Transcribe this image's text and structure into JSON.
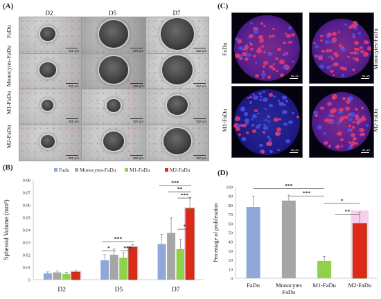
{
  "panels": {
    "a": {
      "label": "(A)",
      "columns": [
        "D2",
        "D5",
        "D7"
      ],
      "rows": [
        {
          "label": "FaDu",
          "scales": [
            "250 μm",
            "250 μm",
            "250 μm"
          ]
        },
        {
          "label": "Monocytes-FaDu",
          "scales": [
            "250 μm",
            "250 μm",
            "250 μm"
          ]
        },
        {
          "label": "M1-FaDu",
          "scales": [
            "250 μm",
            "250 μm",
            "250 μm"
          ]
        },
        {
          "label": "M2-FaDu",
          "scales": [
            "250 μm",
            "250 μm",
            "250 μm"
          ]
        }
      ]
    },
    "c": {
      "label": "(C)",
      "tiles": [
        {
          "label": "FaDu",
          "scale": "50 μm"
        },
        {
          "label": "Monocytes-FaDu",
          "scale": "50 μm"
        },
        {
          "label": "M1-FaDu",
          "scale": "50 μm"
        },
        {
          "label": "M2-FaDu",
          "scale": "50 μm"
        }
      ]
    },
    "b": {
      "label": "(B)"
    },
    "d": {
      "label": "(D)"
    }
  },
  "chart_data": [
    {
      "type": "bar",
      "panel": "B",
      "ylabel": "Spheroid Volume (mm³)",
      "xlabel": "",
      "categories": [
        "D2",
        "D5",
        "D7"
      ],
      "ylim": [
        0,
        0.08
      ],
      "yticks": [
        "0",
        "0.01",
        "0.02",
        "0.03",
        "0.04",
        "0.05",
        "0.06",
        "0.07",
        "0.08"
      ],
      "legend_position": "top",
      "series": [
        {
          "name": "Fadu",
          "color": "#8fa8d8",
          "values": [
            0.005,
            0.0155,
            0.0285
          ],
          "errors": [
            0.0012,
            0.0045,
            0.008
          ]
        },
        {
          "name": "Monocytes-FaDu",
          "color": "#a6a6a6",
          "values": [
            0.0058,
            0.02,
            0.0375
          ],
          "errors": [
            0.0012,
            0.0045,
            0.012
          ]
        },
        {
          "name": "M1-FaDu",
          "color": "#8fd24a",
          "values": [
            0.0046,
            0.0175,
            0.0245
          ],
          "errors": [
            0.0012,
            0.004,
            0.008
          ]
        },
        {
          "name": "M2-FaDu",
          "color": "#dd2a18",
          "values": [
            0.006,
            0.026,
            0.057
          ],
          "errors": [
            0.0012,
            0.002,
            0.009
          ]
        }
      ],
      "significance": [
        {
          "group": 1,
          "from": 0,
          "to": 1,
          "level": 0.023,
          "label": "*"
        },
        {
          "group": 1,
          "from": 2,
          "to": 3,
          "level": 0.023,
          "label": "***"
        },
        {
          "group": 1,
          "from": 0,
          "to": 3,
          "level": 0.0305,
          "label": "***"
        },
        {
          "group": 2,
          "from": 2,
          "to": 3,
          "level": 0.0405,
          "label": "*"
        },
        {
          "group": 2,
          "from": 2,
          "to": 3,
          "level": 0.0655,
          "label": "***"
        },
        {
          "group": 2,
          "from": 1,
          "to": 3,
          "level": 0.0705,
          "label": "**"
        },
        {
          "group": 2,
          "from": 0,
          "to": 3,
          "level": 0.0755,
          "label": "***"
        }
      ]
    },
    {
      "type": "bar",
      "panel": "D",
      "ylabel": "Percentage of proliferation",
      "xlabel": "",
      "categories": [
        "FaDu",
        "Monocytes FaDu",
        "M1-FaDu",
        "M2-FaDu"
      ],
      "colors": [
        "#8fa8d8",
        "#a6a6a6",
        "#8fd24a",
        "#dd2a18"
      ],
      "values": [
        78,
        85,
        19,
        60
      ],
      "errors": [
        12,
        6,
        5,
        12
      ],
      "ylim": [
        0,
        100
      ],
      "yticks": [
        "0",
        "10",
        "20",
        "30",
        "40",
        "50",
        "60",
        "70",
        "80",
        "90",
        "100"
      ],
      "significance": [
        {
          "from": 0,
          "to": 2,
          "level": 98,
          "label": "***"
        },
        {
          "from": 1,
          "to": 2,
          "level": 90,
          "label": "***"
        },
        {
          "from": 2,
          "to": 3,
          "level": 82,
          "label": "*"
        },
        {
          "from": 3,
          "to": 3,
          "level": 70,
          "label": "**",
          "from_x": 2.3
        }
      ]
    }
  ]
}
